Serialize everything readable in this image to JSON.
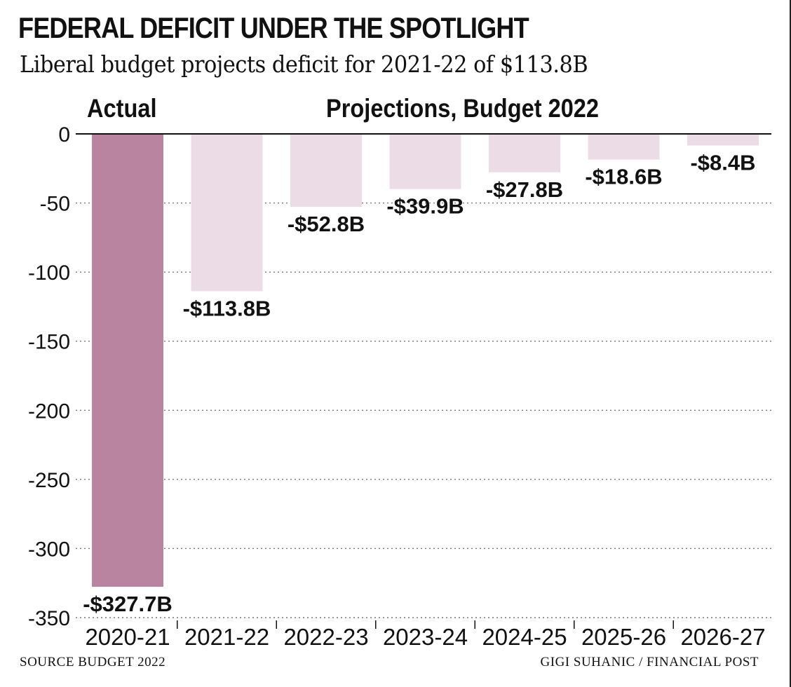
{
  "header": {
    "title": "FEDERAL DEFICIT UNDER THE SPOTLIGHT",
    "subtitle": "Liberal budget projects deficit for 2021-22 of $113.8B"
  },
  "sections": {
    "actual": "Actual",
    "projections": "Projections, Budget 2022"
  },
  "footer": {
    "source": "SOURCE BUDGET 2022",
    "credit": "GIGI SUHANIC / FINANCIAL POST"
  },
  "chart_data": {
    "type": "bar",
    "title": "FEDERAL DEFICIT UNDER THE SPOTLIGHT",
    "subtitle": "Liberal budget projects deficit for 2021-22 of $113.8B",
    "categories": [
      "2020-21",
      "2021-22",
      "2022-23",
      "2023-24",
      "2024-25",
      "2025-26",
      "2026-27"
    ],
    "values": [
      -327.7,
      -113.8,
      -52.8,
      -39.9,
      -27.8,
      -18.6,
      -8.4
    ],
    "data_labels": [
      "-$327.7B",
      "-$113.8B",
      "-$52.8B",
      "-$39.9B",
      "-$27.8B",
      "-$18.6B",
      "-$8.4B"
    ],
    "groups": [
      "Actual",
      "Projections, Budget 2022",
      "Projections, Budget 2022",
      "Projections, Budget 2022",
      "Projections, Budget 2022",
      "Projections, Budget 2022",
      "Projections, Budget 2022"
    ],
    "ylim": [
      -350,
      0
    ],
    "yticks": [
      0,
      -50,
      -100,
      -150,
      -200,
      -250,
      -300,
      -350
    ],
    "ytick_labels": [
      "0",
      "-50",
      "-100",
      "-150",
      "-200",
      "-250",
      "-300",
      "-350"
    ],
    "xlabel": "",
    "ylabel": "",
    "grid": true,
    "colors": {
      "actual": "#b9849f",
      "projection": "#ebdce5",
      "axis": "#111111",
      "grid": "#777777"
    }
  }
}
